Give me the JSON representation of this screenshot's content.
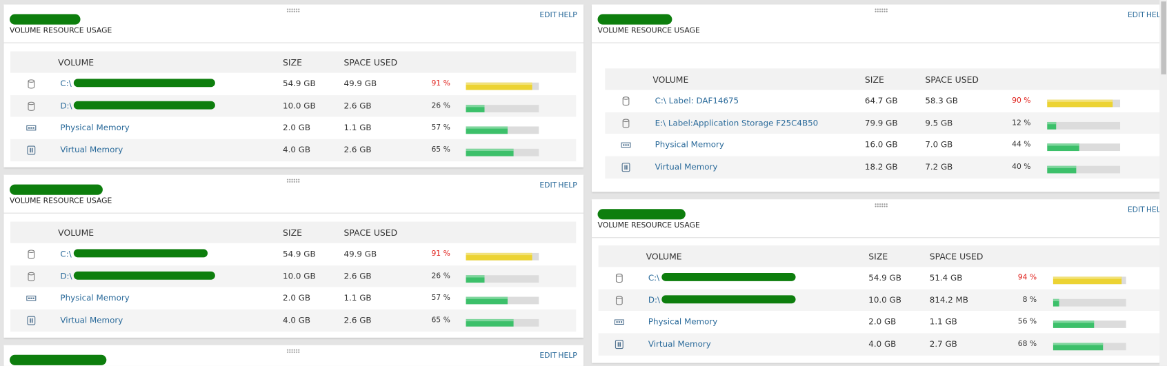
{
  "panels": [
    {
      "subtitle": "VOLUME RESOURCE USAGE",
      "edit": "EDIT",
      "help": "HELP",
      "columns": [
        "VOLUME",
        "SIZE",
        "SPACE USED"
      ],
      "rows": [
        {
          "volume": "C:\\",
          "size": "54.9 GB",
          "used": "49.9 GB",
          "percent": {
            "value": 91,
            "label": "91 %"
          },
          "bar_color": "#ecd333",
          "label_color": "#e0201b"
        },
        {
          "volume": "D:\\",
          "size": "10.0 GB",
          "used": "2.6 GB",
          "percent": {
            "value": 26,
            "label": "26 %"
          },
          "bar_color": "#3cc06a",
          "label_color": "#333333"
        },
        {
          "volume": "Physical Memory",
          "size": "2.0 GB",
          "used": "1.1 GB",
          "percent": {
            "value": 57,
            "label": "57 %"
          },
          "bar_color": "#3cc06a",
          "label_color": "#333333"
        },
        {
          "volume": "Virtual Memory",
          "size": "4.0 GB",
          "used": "2.6 GB",
          "percent": {
            "value": 65,
            "label": "65 %"
          },
          "bar_color": "#3cc06a",
          "label_color": "#333333"
        }
      ]
    },
    {
      "subtitle": "VOLUME RESOURCE USAGE",
      "edit": "EDIT",
      "help": "HELP",
      "columns": [
        "VOLUME",
        "SIZE",
        "SPACE USED"
      ],
      "rows": [
        {
          "volume": "C:\\",
          "size": "54.9 GB",
          "used": "49.9 GB",
          "percent": {
            "value": 91,
            "label": "91 %"
          },
          "bar_color": "#ecd333",
          "label_color": "#e0201b"
        },
        {
          "volume": "D:\\",
          "size": "10.0 GB",
          "used": "2.6 GB",
          "percent": {
            "value": 26,
            "label": "26 %"
          },
          "bar_color": "#3cc06a",
          "label_color": "#333333"
        },
        {
          "volume": "Physical Memory",
          "size": "2.0 GB",
          "used": "1.1 GB",
          "percent": {
            "value": 57,
            "label": "57 %"
          },
          "bar_color": "#3cc06a",
          "label_color": "#333333"
        },
        {
          "volume": "Virtual Memory",
          "size": "4.0 GB",
          "used": "2.6 GB",
          "percent": {
            "value": 65,
            "label": "65 %"
          },
          "bar_color": "#3cc06a",
          "label_color": "#333333"
        }
      ]
    },
    {
      "edit": "EDIT",
      "help": "HELP"
    },
    {
      "subtitle": "VOLUME RESOURCE USAGE",
      "edit": "EDIT",
      "help": "HELP",
      "columns": [
        "VOLUME",
        "SIZE",
        "SPACE USED"
      ],
      "rows": [
        {
          "volume": "C:\\ Label: DAF14675",
          "size": "64.7 GB",
          "used": "58.3 GB",
          "percent": {
            "value": 90,
            "label": "90 %"
          },
          "bar_color": "#ecd333",
          "label_color": "#e0201b"
        },
        {
          "volume": "E:\\ Label:Application Storage F25C4B50",
          "size": "79.9 GB",
          "used": "9.5 GB",
          "percent": {
            "value": 12,
            "label": "12 %"
          },
          "bar_color": "#3cc06a",
          "label_color": "#333333"
        },
        {
          "volume": "Physical Memory",
          "size": "16.0 GB",
          "used": "7.0 GB",
          "percent": {
            "value": 44,
            "label": "44 %"
          },
          "bar_color": "#3cc06a",
          "label_color": "#333333"
        },
        {
          "volume": "Virtual Memory",
          "size": "18.2 GB",
          "used": "7.2 GB",
          "percent": {
            "value": 40,
            "label": "40 %"
          },
          "bar_color": "#3cc06a",
          "label_color": "#333333"
        }
      ]
    },
    {
      "subtitle": "VOLUME RESOURCE USAGE",
      "edit": "EDIT",
      "help": "HELP",
      "columns": [
        "VOLUME",
        "SIZE",
        "SPACE USED"
      ],
      "rows": [
        {
          "volume": "C:\\",
          "size": "54.9 GB",
          "used": "51.4 GB",
          "percent": {
            "value": 94,
            "label": "94 %"
          },
          "bar_color": "#ecd333",
          "label_color": "#e0201b"
        },
        {
          "volume": "D:\\",
          "size": "10.0 GB",
          "used": "814.2 MB",
          "percent": {
            "value": 8,
            "label": "8 %"
          },
          "bar_color": "#3cc06a",
          "label_color": "#333333"
        },
        {
          "volume": "Physical Memory",
          "size": "2.0 GB",
          "used": "1.1 GB",
          "percent": {
            "value": 56,
            "label": "56 %"
          },
          "bar_color": "#3cc06a",
          "label_color": "#333333"
        },
        {
          "volume": "Virtual Memory",
          "size": "4.0 GB",
          "used": "2.7 GB",
          "percent": {
            "value": 68,
            "label": "68 %"
          },
          "bar_color": "#3cc06a",
          "label_color": "#333333"
        }
      ]
    }
  ]
}
